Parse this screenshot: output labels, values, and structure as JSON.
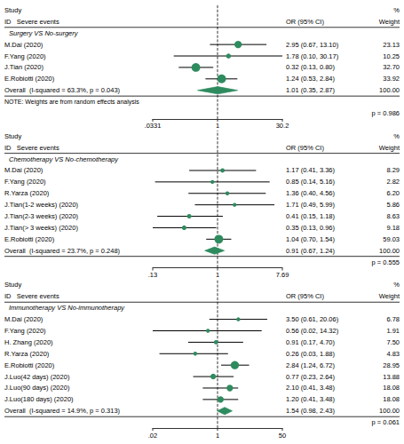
{
  "chart_data": [
    {
      "type": "forest",
      "headers": {
        "study": [
          "Study",
          "ID   Severe events"
        ],
        "estimate": "OR (95% CI)",
        "weight": [
          "%",
          "Weight"
        ]
      },
      "subgroup": "Surgery VS No-surgery",
      "categories": [
        "M.Dai (2020)",
        "F.Yang (2020)",
        "J.Tian (2020)",
        "E.Robiotti (2020)"
      ],
      "values": [
        2.95,
        1.78,
        0.32,
        1.24
      ],
      "lo": [
        0.67,
        0.1,
        0.13,
        0.53
      ],
      "hi": [
        13.1,
        30.17,
        0.8,
        2.84
      ],
      "value_labels": [
        "2.95 (0.67, 13.10)",
        "1.78 (0.10, 30.17)",
        "0.32 (0.13, 0.80)",
        "1.24 (0.53, 2.84)"
      ],
      "weights": [
        23.13,
        10.25,
        32.7,
        33.92
      ],
      "weight_labels": [
        "23.13",
        "10.25",
        "32.70",
        "33.92"
      ],
      "overall": {
        "label": "Overall  (I-squared = 63.3%, p = 0.043)",
        "value": 1.01,
        "lo": 0.35,
        "hi": 2.87,
        "value_label": "1.01 (0.35, 2.87)",
        "weight": 100,
        "weight_label": "100.00"
      },
      "note": "NOTE: Weights are from random effects analysis",
      "p_value": "p = 0.986",
      "xlim": [
        0.0331,
        30.2
      ],
      "xticks": [
        {
          "value": 0.0331,
          "label": ".0331"
        },
        1,
        30.2
      ],
      "log": "x",
      "reference_line": 1,
      "color": "#2e8b5e",
      "grid": false
    },
    {
      "type": "forest",
      "headers": {
        "study": [
          "Study",
          "ID   Severe events"
        ],
        "estimate": "OR (95% CI)",
        "weight": [
          "%",
          "Weight"
        ]
      },
      "subgroup": "Chemotherapy VS No-chemotherapy",
      "categories": [
        "M.Dai (2020)",
        "F.Yang (2020)",
        "R.Yarza (2020)",
        "J.Tian(1-2 weeks) (2020)",
        "J.Tian(2-3 weeks) (2020)",
        "J.Tian(> 3 weeks) (2020)",
        "E.Robiotti (2020)"
      ],
      "values": [
        1.17,
        0.85,
        1.36,
        1.71,
        0.41,
        0.35,
        1.04
      ],
      "lo": [
        0.41,
        0.14,
        0.4,
        0.49,
        0.15,
        0.13,
        0.7
      ],
      "hi": [
        3.36,
        5.16,
        4.56,
        5.99,
        1.18,
        0.96,
        1.54
      ],
      "value_labels": [
        "1.17 (0.41, 3.36)",
        "0.85 (0.14, 5.16)",
        "1.36 (0.40, 4.56)",
        "1.71 (0.49, 5.99)",
        "0.41 (0.15, 1.18)",
        "0.35 (0.13, 0.96)",
        "1.04 (0.70, 1.54)"
      ],
      "weights": [
        8.29,
        2.82,
        6.2,
        5.86,
        8.63,
        9.18,
        59.03
      ],
      "weight_labels": [
        "8.29",
        "2.82",
        "6.20",
        "5.86",
        "8.63",
        "9.18",
        "59.03"
      ],
      "overall": {
        "label": "Overall  (I-squared = 23.7%, p = 0.248)",
        "value": 0.91,
        "lo": 0.67,
        "hi": 1.24,
        "value_label": "0.91 (0.67, 1.24)",
        "weight": 100,
        "weight_label": "100.00"
      },
      "p_value": "p = 0.555",
      "xlim": [
        0.13,
        7.69
      ],
      "xticks": [
        {
          "value": 0.13,
          "label": ".13"
        },
        1,
        7.69
      ],
      "log": "x",
      "reference_line": 1,
      "color": "#2e8b5e",
      "grid": false
    },
    {
      "type": "forest",
      "headers": {
        "study": [
          "Study",
          "ID   Severe events"
        ],
        "estimate": "OR (95% CI)",
        "weight": [
          "%",
          "Weight"
        ]
      },
      "subgroup": "Immunotherapy VS No-immunotherapy",
      "categories": [
        "M.Dai (2020)",
        "F.Yang (2020)",
        "H. Zhang (2020)",
        "R.Yarza (2020)",
        "E.Robiotti (2020)",
        "J.Luo(42 days) (2020)",
        "J.Luo(90 days) (2020)",
        "J.Luo(180 days) (2020)"
      ],
      "values": [
        3.5,
        0.56,
        0.91,
        0.26,
        2.84,
        0.77,
        2.1,
        1.2
      ],
      "lo": [
        0.61,
        0.02,
        0.17,
        0.03,
        1.24,
        0.23,
        0.41,
        0.41
      ],
      "hi": [
        20.06,
        14.32,
        4.7,
        1.88,
        6.72,
        2.64,
        3.48,
        3.48
      ],
      "value_labels": [
        "3.50 (0.61, 20.06)",
        "0.56 (0.02, 14.32)",
        "0.91 (0.17, 4.70)",
        "0.26 (0.03, 1.88)",
        "2.84 (1.24, 6.72)",
        "0.77 (0.23, 2.64)",
        "2.10 (0.41, 3.48)",
        "1.20 (0.41, 3.48)"
      ],
      "weights": [
        6.78,
        1.91,
        7.5,
        4.83,
        28.95,
        13.88,
        18.08,
        18.08
      ],
      "weight_labels": [
        "6.78",
        "1.91",
        "7.50",
        "4.83",
        "28.95",
        "13.88",
        "18.08",
        "18.08"
      ],
      "overall": {
        "label": "Overall  (I-squared = 14.9%, p = 0.313)",
        "value": 1.54,
        "lo": 0.98,
        "hi": 2.43,
        "value_label": "1.54 (0.98, 2.43)",
        "weight": 100,
        "weight_label": "100.00"
      },
      "p_value": "p = 0.061",
      "xlim": [
        0.02,
        50
      ],
      "xticks": [
        {
          "value": 0.02,
          "label": ".02"
        },
        1,
        50
      ],
      "log": "x",
      "reference_line": 1,
      "color": "#2e8b5e",
      "grid": false
    }
  ]
}
